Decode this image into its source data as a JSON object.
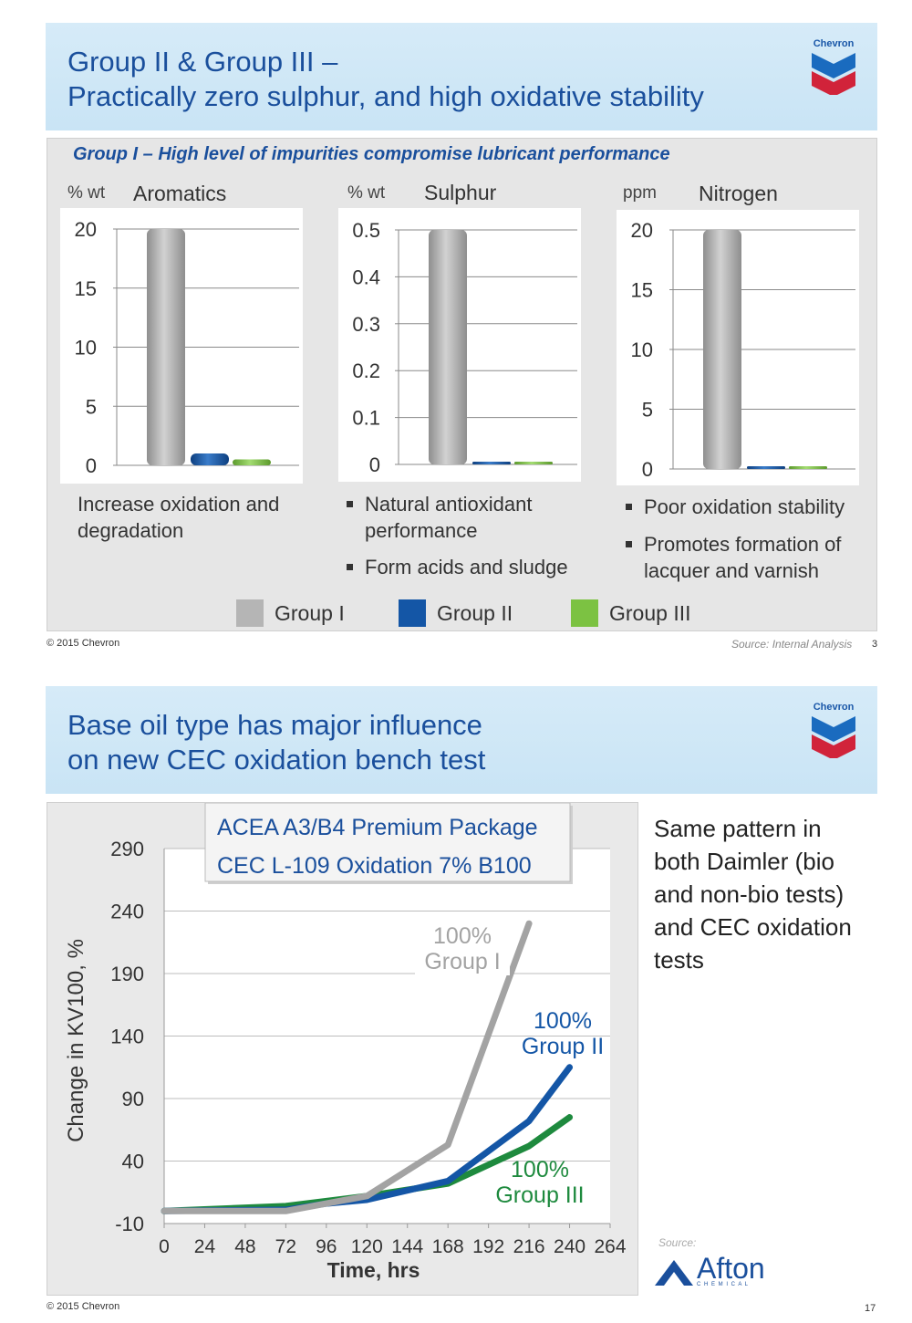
{
  "slide1": {
    "title_line1": "Group II & Group III –",
    "title_line2": "Practically zero sulphur, and high oxidative stability",
    "logo_text": "Chevron",
    "subtitle": "Group I – High level of impurities compromise lubricant performance",
    "footer_left": "© 2015 Chevron",
    "source": "Source: Internal Analysis",
    "page_number": "3",
    "texts": {
      "aromatics_desc": "Increase oxidation and degradation",
      "sulphur_bullets": [
        "Natural antioxidant performance",
        "Form acids and sludge"
      ],
      "nitrogen_bullets": [
        "Poor oxidation stability",
        "Promotes formation of lacquer and varnish"
      ]
    },
    "legend": [
      {
        "name": "Group I",
        "color": "#b5b5b5"
      },
      {
        "name": "Group II",
        "color": "#1456a6"
      },
      {
        "name": "Group III",
        "color": "#7cc242"
      }
    ]
  },
  "slide2": {
    "title_line1": "Base oil type has major influence",
    "title_line2": "on new CEC oxidation bench test",
    "logo_text": "Chevron",
    "side_text": "Same pattern in both Daimler (bio and non-bio tests) and CEC oxidation tests",
    "source_label": "Source:",
    "afton_logo_text": "Afton",
    "afton_sub": "C H E M I C A L",
    "footer_left": "© 2015 Chevron",
    "page_number": "17"
  },
  "colors": {
    "title_blue": "#1a4f9c",
    "group1": "#b5b5b5",
    "group2": "#1456a6",
    "group3": "#7cc242",
    "line_group1": "#a3a3a3",
    "line_group2": "#1456a6",
    "line_group3": "#1e8a3e"
  },
  "chart_data": [
    {
      "type": "bar",
      "title": "Aromatics",
      "unit": "% wt",
      "categories": [
        "Group I",
        "Group II",
        "Group III"
      ],
      "values": [
        20,
        1,
        0.5
      ],
      "ylim": [
        0,
        20
      ],
      "yticks": [
        "0",
        "5",
        "10",
        "15",
        "20"
      ],
      "grid": true
    },
    {
      "type": "bar",
      "title": "Sulphur",
      "unit": "% wt",
      "categories": [
        "Group I",
        "Group II",
        "Group III"
      ],
      "values": [
        0.5,
        0.0,
        0.0
      ],
      "ylim": [
        0,
        0.5
      ],
      "yticks": [
        "0",
        "0.1",
        "0.2",
        "0.3",
        "0.4",
        "0.5"
      ],
      "grid": true
    },
    {
      "type": "bar",
      "title": "Nitrogen",
      "unit": "ppm",
      "categories": [
        "Group I",
        "Group II",
        "Group III"
      ],
      "values": [
        20,
        0.0,
        0.0
      ],
      "ylim": [
        0,
        20
      ],
      "yticks": [
        "0",
        "5",
        "10",
        "15",
        "20"
      ],
      "grid": true
    },
    {
      "type": "line",
      "box_lines": [
        "ACEA A3/B4 Premium Package",
        "CEC L-109 Oxidation 7% B100"
      ],
      "xlabel": "Time, hrs",
      "ylabel": "Change in KV100, %",
      "xticks": [
        "0",
        "24",
        "48",
        "72",
        "96",
        "120",
        "144",
        "168",
        "192",
        "216",
        "240",
        "264"
      ],
      "yticks": [
        "-10",
        "40",
        "90",
        "140",
        "190",
        "240",
        "290"
      ],
      "xlim": [
        0,
        264
      ],
      "ylim": [
        -10,
        290
      ],
      "grid": true,
      "series": [
        {
          "name": "100% Group I",
          "label_line1": "100%",
          "label_line2": "Group I",
          "x": [
            0,
            72,
            120,
            168,
            216
          ],
          "y": [
            0,
            0,
            12,
            53,
            230
          ]
        },
        {
          "name": "100% Group II",
          "label_line1": "100%",
          "label_line2": "Group II",
          "x": [
            0,
            72,
            96,
            120,
            168,
            216,
            240
          ],
          "y": [
            0,
            1,
            6,
            9,
            24,
            72,
            115
          ]
        },
        {
          "name": "100% Group III",
          "label_line1": "100%",
          "label_line2": "Group III",
          "x": [
            0,
            72,
            120,
            168,
            216,
            240
          ],
          "y": [
            0,
            4,
            12,
            22,
            52,
            75
          ]
        }
      ]
    }
  ]
}
